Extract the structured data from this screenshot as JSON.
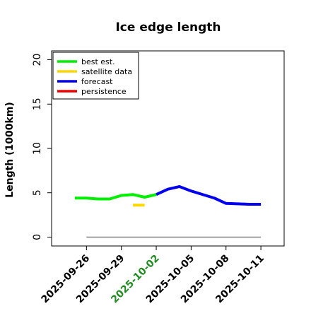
{
  "chart_data": {
    "type": "line",
    "title": "Ice edge length",
    "xlabel": "",
    "ylabel": "Length (1000km)",
    "ylim": [
      -1,
      21
    ],
    "xlim": [
      "2025-09-23",
      "2025-10-13"
    ],
    "yticks": [
      "0",
      "5",
      "10",
      "15",
      "20"
    ],
    "xticks": [
      {
        "label": "2025-09-26",
        "color": "#000000"
      },
      {
        "label": "2025-09-29",
        "color": "#000000"
      },
      {
        "label": "2025-10-02",
        "color": "#228b22"
      },
      {
        "label": "2025-10-05",
        "color": "#000000"
      },
      {
        "label": "2025-10-08",
        "color": "#000000"
      },
      {
        "label": "2025-10-11",
        "color": "#000000"
      }
    ],
    "grid": false,
    "legend_position": "top-left",
    "series": [
      {
        "name": "best est.",
        "color": "#00ee00",
        "points": [
          [
            "2025-09-25",
            4.4
          ],
          [
            "2025-09-26",
            4.4
          ],
          [
            "2025-09-27",
            4.3
          ],
          [
            "2025-09-28",
            4.3
          ],
          [
            "2025-09-29",
            4.7
          ],
          [
            "2025-09-30",
            4.8
          ],
          [
            "2025-10-01",
            4.5
          ],
          [
            "2025-10-02",
            4.8
          ]
        ]
      },
      {
        "name": "satellite data",
        "color": "#ffd700",
        "points": [
          [
            "2025-09-30",
            3.6
          ],
          [
            "2025-10-01",
            3.6
          ]
        ]
      },
      {
        "name": "forecast",
        "color": "#0000ee",
        "points": [
          [
            "2025-10-02",
            4.8
          ],
          [
            "2025-10-03",
            5.4
          ],
          [
            "2025-10-04",
            5.7
          ],
          [
            "2025-10-05",
            5.2
          ],
          [
            "2025-10-06",
            4.8
          ],
          [
            "2025-10-07",
            4.4
          ],
          [
            "2025-10-08",
            3.8
          ],
          [
            "2025-10-09",
            3.75
          ],
          [
            "2025-10-10",
            3.7
          ],
          [
            "2025-10-11",
            3.7
          ]
        ]
      },
      {
        "name": "persistence",
        "color": "#ee0000",
        "points": []
      }
    ],
    "baseline": {
      "color": "#808080",
      "points": [
        [
          "2025-09-26",
          0
        ],
        [
          "2025-10-11",
          0
        ]
      ]
    }
  }
}
